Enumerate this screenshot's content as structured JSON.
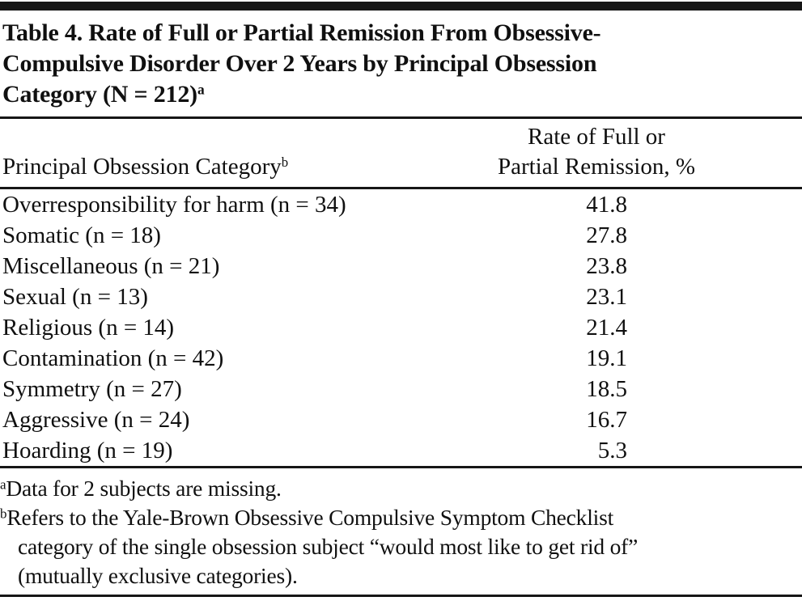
{
  "title": {
    "text": "Table 4. Rate of Full or Partial Remission From Obsessive-\nCompulsive Disorder Over 2 Years by Principal Obsession\nCategory (N = 212)",
    "superscript": "a"
  },
  "table": {
    "header": {
      "category": "Principal Obsession Category",
      "category_superscript": "b",
      "rate": "Rate of Full or\nPartial Remission, %"
    },
    "rows": [
      {
        "category": "Overresponsibility for harm (n = 34)",
        "rate": "41.8"
      },
      {
        "category": "Somatic (n = 18)",
        "rate": "27.8"
      },
      {
        "category": "Miscellaneous (n = 21)",
        "rate": "23.8"
      },
      {
        "category": "Sexual (n = 13)",
        "rate": "23.1"
      },
      {
        "category": "Religious (n = 14)",
        "rate": "21.4"
      },
      {
        "category": "Contamination (n = 42)",
        "rate": "19.1"
      },
      {
        "category": "Symmetry (n = 27)",
        "rate": "18.5"
      },
      {
        "category": "Aggressive (n = 24)",
        "rate": "16.7"
      },
      {
        "category": "Hoarding (n = 19)",
        "rate": "5.3"
      }
    ]
  },
  "footnotes": [
    {
      "marker": "a",
      "text": "Data for 2 subjects are missing."
    },
    {
      "marker": "b",
      "text": "Refers to the Yale-Brown Obsessive Compulsive Symptom Checklist\ncategory of the single obsession subject “would most like to get rid of”\n(mutually exclusive categories)."
    }
  ],
  "colors": {
    "text": "#101010",
    "rule": "#161616",
    "background": "#ffffff"
  },
  "chart_data": {
    "type": "table",
    "title": "Table 4. Rate of Full or Partial Remission From Obsessive-Compulsive Disorder Over 2 Years by Principal Obsession Category (N = 212)",
    "columns": [
      "Principal Obsession Category",
      "Rate of Full or Partial Remission, %"
    ],
    "categories": [
      "Overresponsibility for harm",
      "Somatic",
      "Miscellaneous",
      "Sexual",
      "Religious",
      "Contamination",
      "Symmetry",
      "Aggressive",
      "Hoarding"
    ],
    "n_per_category": [
      34,
      18,
      21,
      13,
      14,
      42,
      27,
      24,
      19
    ],
    "values": [
      41.8,
      27.8,
      23.8,
      23.1,
      21.4,
      19.1,
      18.5,
      16.7,
      5.3
    ],
    "total_n": 212,
    "notes": [
      "Data for 2 subjects are missing.",
      "Refers to the Yale-Brown Obsessive Compulsive Symptom Checklist category of the single obsession subject “would most like to get rid of” (mutually exclusive categories)."
    ]
  }
}
